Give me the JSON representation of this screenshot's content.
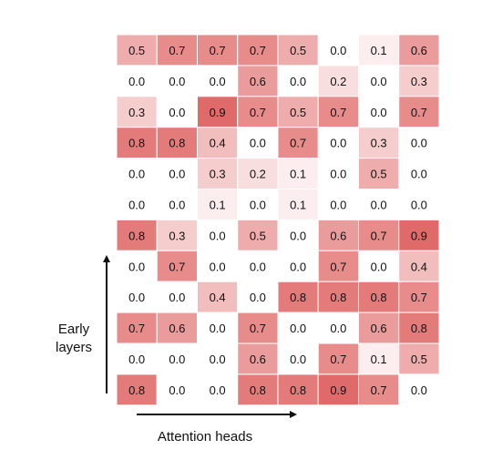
{
  "chart_data": {
    "type": "heatmap",
    "title": "",
    "xlabel": "Attention heads",
    "ylabel_lines": [
      "Early",
      "layers"
    ],
    "cell_color_max": "#e06a6a",
    "cell_color_min": "#ffffff",
    "value_range": [
      0,
      0.9
    ],
    "grid": true,
    "rows": [
      [
        0.5,
        0.7,
        0.7,
        0.7,
        0.5,
        0.0,
        0.1,
        0.6
      ],
      [
        0.0,
        0.0,
        0.0,
        0.6,
        0.0,
        0.2,
        0.0,
        0.3
      ],
      [
        0.3,
        0.0,
        0.9,
        0.7,
        0.5,
        0.7,
        0.0,
        0.7
      ],
      [
        0.8,
        0.8,
        0.4,
        0.0,
        0.7,
        0.0,
        0.3,
        0.0
      ],
      [
        0.0,
        0.0,
        0.3,
        0.2,
        0.1,
        0.0,
        0.5,
        0.0
      ],
      [
        0.0,
        0.0,
        0.1,
        0.0,
        0.1,
        0.0,
        0.0,
        0.0
      ],
      [
        0.8,
        0.3,
        0.0,
        0.5,
        0.0,
        0.6,
        0.7,
        0.9
      ],
      [
        0.0,
        0.7,
        0.0,
        0.0,
        0.0,
        0.7,
        0.0,
        0.4
      ],
      [
        0.0,
        0.0,
        0.4,
        0.0,
        0.8,
        0.8,
        0.8,
        0.7
      ],
      [
        0.7,
        0.6,
        0.0,
        0.7,
        0.0,
        0.0,
        0.6,
        0.8
      ],
      [
        0.0,
        0.0,
        0.0,
        0.6,
        0.0,
        0.7,
        0.1,
        0.5
      ],
      [
        0.8,
        0.0,
        0.0,
        0.8,
        0.8,
        0.9,
        0.7,
        0.0
      ]
    ]
  }
}
